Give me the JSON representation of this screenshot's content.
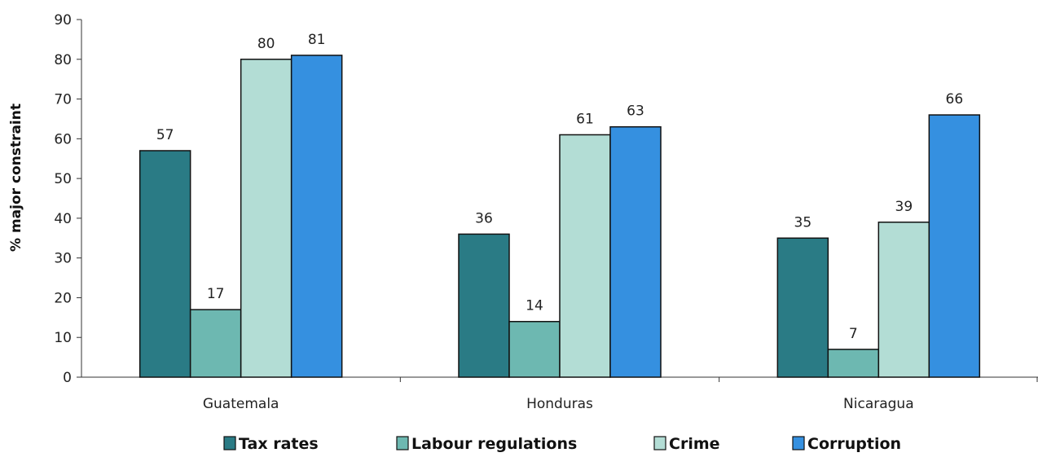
{
  "chart_data": {
    "type": "bar",
    "title": "",
    "xlabel": "",
    "ylabel": "% major constraint",
    "ylim": [
      0,
      90
    ],
    "yticks": [
      0,
      10,
      20,
      30,
      40,
      50,
      60,
      70,
      80,
      90
    ],
    "grid": false,
    "legend_position": "bottom",
    "categories": [
      "Guatemala",
      "Honduras",
      "Nicaragua"
    ],
    "series": [
      {
        "name": "Tax rates",
        "color": "#2a7b85",
        "values": [
          57,
          36,
          35
        ]
      },
      {
        "name": "Labour regulations",
        "color": "#6db8b1",
        "values": [
          17,
          14,
          7
        ]
      },
      {
        "name": "Crime",
        "color": "#b3ddd5",
        "values": [
          80,
          61,
          39
        ]
      },
      {
        "name": "Corruption",
        "color": "#3590e0",
        "values": [
          81,
          63,
          66
        ]
      }
    ]
  }
}
